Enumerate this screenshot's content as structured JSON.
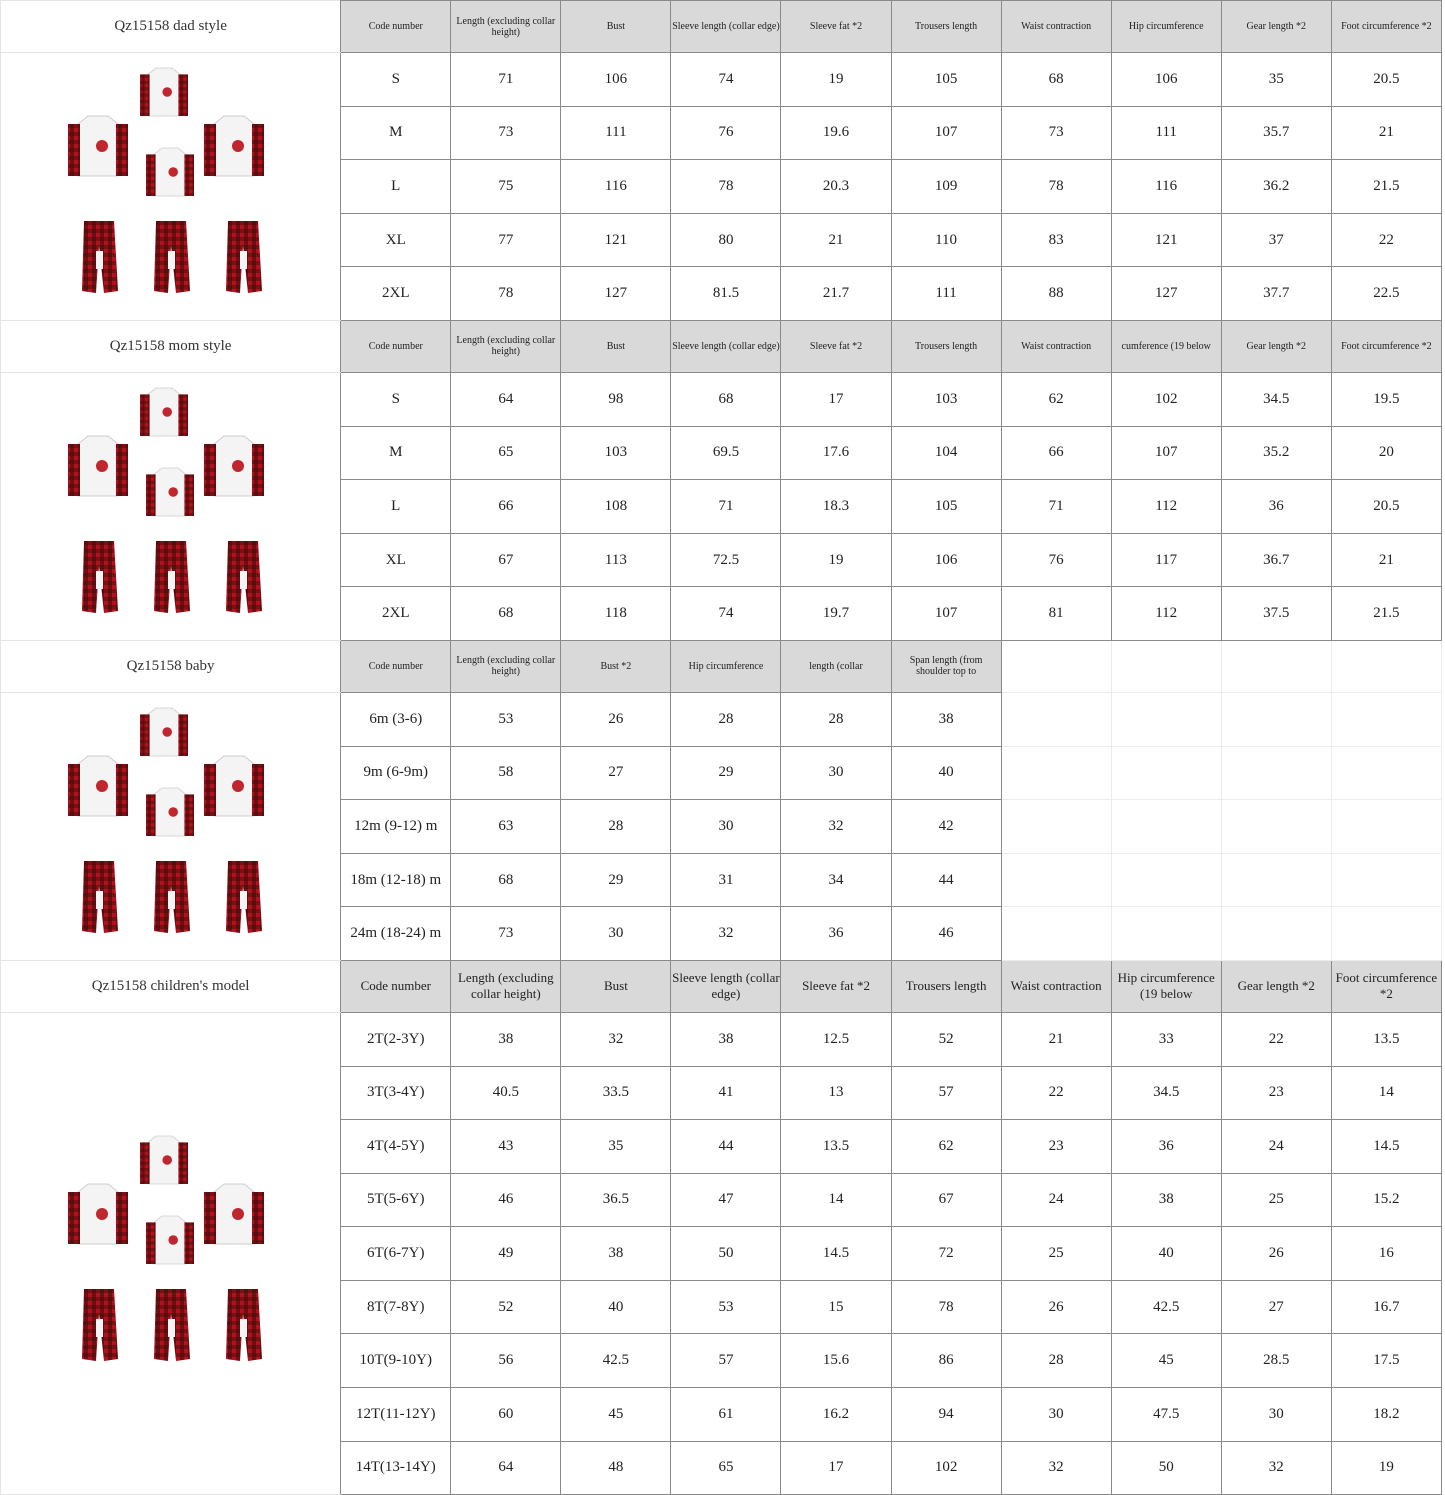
{
  "sections": [
    {
      "title": "Qz15158 dad style",
      "big_header": false,
      "headers": [
        "Code number",
        "Length (excluding collar height)",
        "Bust",
        "Sleeve length (collar edge)",
        "Sleeve fat *2",
        "Trousers length",
        "Waist contraction",
        "Hip circumference",
        "Gear length *2",
        "Foot circumference *2"
      ],
      "rows": [
        [
          "S",
          "71",
          "106",
          "74",
          "19",
          "105",
          "68",
          "106",
          "35",
          "20.5"
        ],
        [
          "M",
          "73",
          "111",
          "76",
          "19.6",
          "107",
          "73",
          "111",
          "35.7",
          "21"
        ],
        [
          "L",
          "75",
          "116",
          "78",
          "20.3",
          "109",
          "78",
          "116",
          "36.2",
          "21.5"
        ],
        [
          "XL",
          "77",
          "121",
          "80",
          "21",
          "110",
          "83",
          "121",
          "37",
          "22"
        ],
        [
          "2XL",
          "78",
          "127",
          "81.5",
          "21.7",
          "111",
          "88",
          "127",
          "37.7",
          "22.5"
        ]
      ]
    },
    {
      "title": "Qz15158 mom style",
      "big_header": false,
      "headers": [
        "Code number",
        "Length (excluding collar height)",
        "Bust",
        "Sleeve length (collar edge)",
        "Sleeve fat *2",
        "Trousers length",
        "Waist contraction",
        "cumference (19 below",
        "Gear length *2",
        "Foot circumference *2"
      ],
      "rows": [
        [
          "S",
          "64",
          "98",
          "68",
          "17",
          "103",
          "62",
          "102",
          "34.5",
          "19.5"
        ],
        [
          "M",
          "65",
          "103",
          "69.5",
          "17.6",
          "104",
          "66",
          "107",
          "35.2",
          "20"
        ],
        [
          "L",
          "66",
          "108",
          "71",
          "18.3",
          "105",
          "71",
          "112",
          "36",
          "20.5"
        ],
        [
          "XL",
          "67",
          "113",
          "72.5",
          "19",
          "106",
          "76",
          "117",
          "36.7",
          "21"
        ],
        [
          "2XL",
          "68",
          "118",
          "74",
          "19.7",
          "107",
          "81",
          "112",
          "37.5",
          "21.5"
        ]
      ]
    },
    {
      "title": "Qz15158 baby",
      "big_header": false,
      "headers": [
        "Code number",
        "Length (excluding collar height)",
        "Bust *2",
        "Hip circumference",
        "length (collar",
        "Span length (from shoulder top to"
      ],
      "rows": [
        [
          "6m (3-6)",
          "53",
          "26",
          "28",
          "28",
          "38"
        ],
        [
          "9m (6-9m)",
          "58",
          "27",
          "29",
          "30",
          "40"
        ],
        [
          "12m (9-12) m",
          "63",
          "28",
          "30",
          "32",
          "42"
        ],
        [
          "18m (12-18) m",
          "68",
          "29",
          "31",
          "34",
          "44"
        ],
        [
          "24m (18-24) m",
          "73",
          "30",
          "32",
          "36",
          "46"
        ]
      ]
    },
    {
      "title": "Qz15158 children's model",
      "big_header": true,
      "headers": [
        "Code number",
        "Length (excluding collar height)",
        "Bust",
        "Sleeve length (collar edge)",
        "Sleeve fat *2",
        "Trousers length",
        "Waist contraction",
        "Hip circumference (19 below",
        "Gear length *2",
        "Foot circumference *2"
      ],
      "rows": [
        [
          "2T(2-3Y)",
          "38",
          "32",
          "38",
          "12.5",
          "52",
          "21",
          "33",
          "22",
          "13.5"
        ],
        [
          "3T(3-4Y)",
          "40.5",
          "33.5",
          "41",
          "13",
          "57",
          "22",
          "34.5",
          "23",
          "14"
        ],
        [
          "4T(4-5Y)",
          "43",
          "35",
          "44",
          "13.5",
          "62",
          "23",
          "36",
          "24",
          "14.5"
        ],
        [
          "5T(5-6Y)",
          "46",
          "36.5",
          "47",
          "14",
          "67",
          "24",
          "38",
          "25",
          "15.2"
        ],
        [
          "6T(6-7Y)",
          "49",
          "38",
          "50",
          "14.5",
          "72",
          "25",
          "40",
          "26",
          "16"
        ],
        [
          "8T(7-8Y)",
          "52",
          "40",
          "53",
          "15",
          "78",
          "26",
          "42.5",
          "27",
          "16.7"
        ],
        [
          "10T(9-10Y)",
          "56",
          "42.5",
          "57",
          "15.6",
          "86",
          "28",
          "45",
          "28.5",
          "17.5"
        ],
        [
          "12T(11-12Y)",
          "60",
          "45",
          "61",
          "16.2",
          "94",
          "30",
          "47.5",
          "30",
          "18.2"
        ],
        [
          "14T(13-14Y)",
          "64",
          "48",
          "65",
          "17",
          "102",
          "32",
          "50",
          "32",
          "19"
        ]
      ]
    }
  ],
  "colors": {
    "header_bg": "#d9d9d9",
    "plaid_red": "#b3121b",
    "plaid_dark": "#3a0a0c"
  }
}
